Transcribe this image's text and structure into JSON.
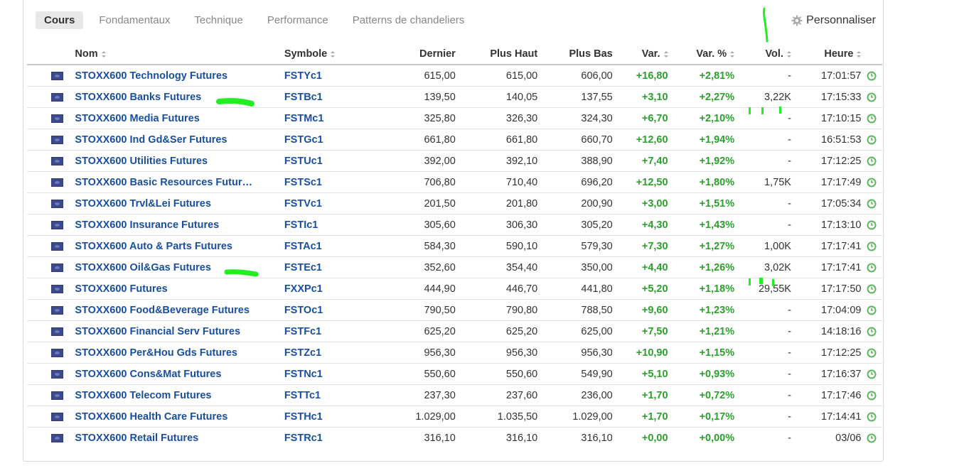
{
  "tabs": [
    {
      "label": "Cours",
      "active": true
    },
    {
      "label": "Fondamentaux",
      "active": false
    },
    {
      "label": "Technique",
      "active": false
    },
    {
      "label": "Performance",
      "active": false
    },
    {
      "label": "Patterns de chandeliers",
      "active": false
    }
  ],
  "personalize_label": "Personnaliser",
  "columns": {
    "name": "Nom",
    "symbol": "Symbole",
    "last": "Dernier",
    "high": "Plus Haut",
    "low": "Plus Bas",
    "change": "Var.",
    "change_pct": "Var. %",
    "volume": "Vol.",
    "time": "Heure"
  },
  "colors": {
    "link": "#1a4fa0",
    "positive": "#2ca02c",
    "highlight_mark": "#22ee22"
  },
  "rows": [
    {
      "name": "STOXX600 Technology Futures",
      "symbol": "FSTYc1",
      "last": "615,00",
      "high": "615,00",
      "low": "606,00",
      "change": "+16,80",
      "change_pct": "+2,81%",
      "volume": "-",
      "time": "17:01:57"
    },
    {
      "name": "STOXX600 Banks Futures",
      "symbol": "FSTBc1",
      "last": "139,50",
      "high": "140,05",
      "low": "137,55",
      "change": "+3,10",
      "change_pct": "+2,27%",
      "volume": "3,22K",
      "time": "17:15:33"
    },
    {
      "name": "STOXX600 Media Futures",
      "symbol": "FSTMc1",
      "last": "325,80",
      "high": "326,30",
      "low": "324,30",
      "change": "+6,70",
      "change_pct": "+2,10%",
      "volume": "-",
      "time": "17:10:15"
    },
    {
      "name": "STOXX600 Ind Gd&Ser Futures",
      "symbol": "FSTGc1",
      "last": "661,80",
      "high": "661,80",
      "low": "660,70",
      "change": "+12,60",
      "change_pct": "+1,94%",
      "volume": "-",
      "time": "16:51:53"
    },
    {
      "name": "STOXX600 Utilities Futures",
      "symbol": "FSTUc1",
      "last": "392,00",
      "high": "392,10",
      "low": "388,90",
      "change": "+7,40",
      "change_pct": "+1,92%",
      "volume": "-",
      "time": "17:12:25"
    },
    {
      "name": "STOXX600 Basic Resources Futur…",
      "symbol": "FSTSc1",
      "last": "706,80",
      "high": "710,40",
      "low": "696,20",
      "change": "+12,50",
      "change_pct": "+1,80%",
      "volume": "1,75K",
      "time": "17:17:49"
    },
    {
      "name": "STOXX600 Trvl&Lei Futures",
      "symbol": "FSTVc1",
      "last": "201,50",
      "high": "201,80",
      "low": "200,90",
      "change": "+3,00",
      "change_pct": "+1,51%",
      "volume": "-",
      "time": "17:05:34"
    },
    {
      "name": "STOXX600 Insurance Futures",
      "symbol": "FSTIc1",
      "last": "305,60",
      "high": "306,30",
      "low": "305,20",
      "change": "+4,30",
      "change_pct": "+1,43%",
      "volume": "-",
      "time": "17:13:10"
    },
    {
      "name": "STOXX600 Auto & Parts Futures",
      "symbol": "FSTAc1",
      "last": "584,30",
      "high": "590,10",
      "low": "579,30",
      "change": "+7,30",
      "change_pct": "+1,27%",
      "volume": "1,00K",
      "time": "17:17:41"
    },
    {
      "name": "STOXX600 Oil&Gas Futures",
      "symbol": "FSTEc1",
      "last": "352,60",
      "high": "354,40",
      "low": "350,00",
      "change": "+4,40",
      "change_pct": "+1,26%",
      "volume": "3,02K",
      "time": "17:17:41"
    },
    {
      "name": "STOXX600 Futures",
      "symbol": "FXXPc1",
      "last": "444,90",
      "high": "446,70",
      "low": "441,80",
      "change": "+5,20",
      "change_pct": "+1,18%",
      "volume": "29,55K",
      "time": "17:17:50"
    },
    {
      "name": "STOXX600 Food&Beverage Futures",
      "symbol": "FSTOc1",
      "last": "790,50",
      "high": "790,80",
      "low": "788,50",
      "change": "+9,60",
      "change_pct": "+1,23%",
      "volume": "-",
      "time": "17:04:09"
    },
    {
      "name": "STOXX600 Financial Serv Futures",
      "symbol": "FSTFc1",
      "last": "625,20",
      "high": "625,20",
      "low": "625,00",
      "change": "+7,50",
      "change_pct": "+1,21%",
      "volume": "-",
      "time": "14:18:16"
    },
    {
      "name": "STOXX600 Per&Hou Gds Futures",
      "symbol": "FSTZc1",
      "last": "956,30",
      "high": "956,30",
      "low": "956,30",
      "change": "+10,90",
      "change_pct": "+1,15%",
      "volume": "-",
      "time": "17:12:25"
    },
    {
      "name": "STOXX600 Cons&Mat Futures",
      "symbol": "FSTNc1",
      "last": "550,60",
      "high": "550,60",
      "low": "549,90",
      "change": "+5,10",
      "change_pct": "+0,93%",
      "volume": "-",
      "time": "17:16:37"
    },
    {
      "name": "STOXX600 Telecom Futures",
      "symbol": "FSTTc1",
      "last": "237,30",
      "high": "237,60",
      "low": "236,00",
      "change": "+1,70",
      "change_pct": "+0,72%",
      "volume": "-",
      "time": "17:17:46"
    },
    {
      "name": "STOXX600 Health Care Futures",
      "symbol": "FSTHc1",
      "last": "1.029,00",
      "high": "1.035,50",
      "low": "1.029,00",
      "change": "+1,70",
      "change_pct": "+0,17%",
      "volume": "-",
      "time": "17:14:41"
    },
    {
      "name": "STOXX600 Retail Futures",
      "symbol": "FSTRc1",
      "last": "316,10",
      "high": "316,10",
      "low": "316,10",
      "change": "+0,00",
      "change_pct": "+0,00%",
      "volume": "-",
      "time": "03/06"
    }
  ]
}
